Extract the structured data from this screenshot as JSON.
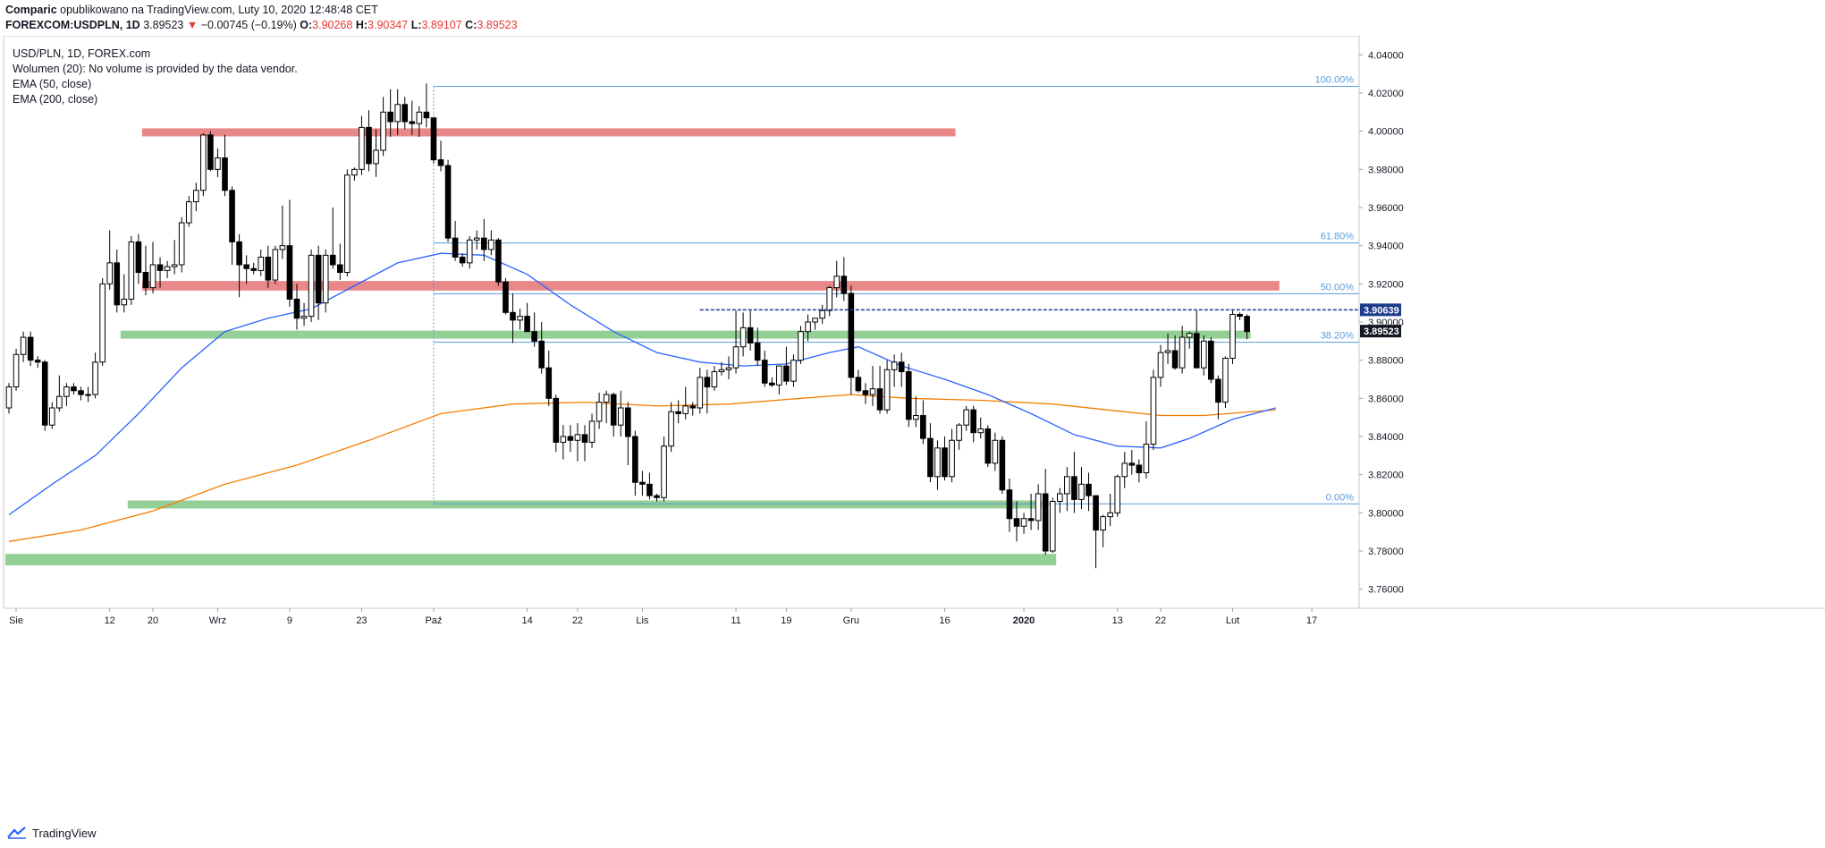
{
  "header": {
    "author": "Comparic",
    "published_text": "opublikowano na TradingView.com, Luty 10, 2020 12:48:48 CET",
    "symbol": "FOREXCOM:USDPLN,",
    "interval": "1D",
    "last": "3.89523",
    "change": "−0.00745 (−0.19%)",
    "o_label": "O:",
    "o_value": "3.90268",
    "h_label": "H:",
    "h_value": "3.90347",
    "l_label": "L:",
    "l_value": "3.89107",
    "c_label": "C:",
    "c_value": "3.89523"
  },
  "legend": {
    "symbol": "USD/PLN, 1D, FOREX.com",
    "volume": "Wolumen (20): No volume is provided by the data vendor.",
    "ema50": "EMA (50, close)",
    "ema200": "EMA (200, close)"
  },
  "footer": {
    "brand": "TradingView"
  },
  "colors": {
    "up_candle": "#ffffff",
    "down_candle": "#000000",
    "wick": "#000000",
    "ema50": "#2962ff",
    "ema200": "#f57c00",
    "resistance": "#e57373",
    "support": "#81c784",
    "fib": "#5b9bd5",
    "current_level": "#1e3a8a"
  },
  "chart_data": {
    "type": "candlestick",
    "title": "USD/PLN, 1D, FOREX.com",
    "ylim": [
      3.75,
      4.05
    ],
    "y_ticks": [
      "3.76000",
      "3.78000",
      "3.80000",
      "3.82000",
      "3.84000",
      "3.86000",
      "3.88000",
      "3.90000",
      "3.92000",
      "3.94000",
      "3.96000",
      "3.98000",
      "4.00000",
      "4.02000",
      "4.04000"
    ],
    "x_tick_labels": [
      "Sie",
      "12",
      "20",
      "Wrz",
      "9",
      "23",
      "Paź",
      "14",
      "22",
      "Lis",
      "11",
      "19",
      "Gru",
      "16",
      "2020",
      "13",
      "22",
      "Lut",
      "17"
    ],
    "x_tick_index": [
      1,
      14,
      20,
      29,
      39,
      49,
      59,
      72,
      79,
      88,
      101,
      108,
      117,
      130,
      141,
      154,
      160,
      170,
      181
    ],
    "candle_count": 177,
    "ohlc": [
      [
        3.855,
        3.868,
        3.852,
        3.866
      ],
      [
        3.866,
        3.886,
        3.864,
        3.883
      ],
      [
        3.883,
        3.895,
        3.879,
        3.892
      ],
      [
        3.892,
        3.895,
        3.877,
        3.88
      ],
      [
        3.88,
        3.882,
        3.876,
        3.879
      ],
      [
        3.879,
        3.88,
        3.843,
        3.846
      ],
      [
        3.846,
        3.858,
        3.844,
        3.855
      ],
      [
        3.855,
        3.872,
        3.853,
        3.861
      ],
      [
        3.861,
        3.868,
        3.856,
        3.866
      ],
      [
        3.866,
        3.868,
        3.862,
        3.864
      ],
      [
        3.864,
        3.866,
        3.859,
        3.862
      ],
      [
        3.862,
        3.866,
        3.858,
        3.862
      ],
      [
        3.862,
        3.884,
        3.86,
        3.879
      ],
      [
        3.879,
        3.923,
        3.877,
        3.92
      ],
      [
        3.92,
        3.948,
        3.917,
        3.931
      ],
      [
        3.931,
        3.938,
        3.905,
        3.909
      ],
      [
        3.909,
        3.925,
        3.905,
        3.912
      ],
      [
        3.912,
        3.945,
        3.909,
        3.942
      ],
      [
        3.942,
        3.946,
        3.92,
        3.926
      ],
      [
        3.926,
        3.94,
        3.914,
        3.918
      ],
      [
        3.918,
        3.942,
        3.915,
        3.93
      ],
      [
        3.93,
        3.934,
        3.918,
        3.927
      ],
      [
        3.927,
        3.932,
        3.923,
        3.929
      ],
      [
        3.929,
        3.943,
        3.925,
        3.93
      ],
      [
        3.93,
        3.955,
        3.926,
        3.952
      ],
      [
        3.952,
        3.966,
        3.95,
        3.963
      ],
      [
        3.963,
        3.973,
        3.958,
        3.969
      ],
      [
        3.969,
        3.999,
        3.966,
        3.998
      ],
      [
        3.998,
        4.0,
        3.979,
        3.98
      ],
      [
        3.98,
        3.991,
        3.976,
        3.986
      ],
      [
        3.986,
        3.998,
        3.966,
        3.969
      ],
      [
        3.969,
        3.971,
        3.93,
        3.942
      ],
      [
        3.942,
        3.946,
        3.913,
        3.93
      ],
      [
        3.93,
        3.935,
        3.92,
        3.928
      ],
      [
        3.928,
        3.931,
        3.925,
        3.927
      ],
      [
        3.927,
        3.938,
        3.924,
        3.934
      ],
      [
        3.934,
        3.94,
        3.918,
        3.922
      ],
      [
        3.922,
        3.94,
        3.92,
        3.938
      ],
      [
        3.938,
        3.961,
        3.933,
        3.94
      ],
      [
        3.94,
        3.964,
        3.908,
        3.912
      ],
      [
        3.912,
        3.92,
        3.896,
        3.902
      ],
      [
        3.902,
        3.91,
        3.898,
        3.903
      ],
      [
        3.903,
        3.938,
        3.9,
        3.935
      ],
      [
        3.935,
        3.94,
        3.901,
        3.91
      ],
      [
        3.91,
        3.938,
        3.905,
        3.935
      ],
      [
        3.935,
        3.96,
        3.928,
        3.93
      ],
      [
        3.93,
        3.941,
        3.922,
        3.926
      ],
      [
        3.926,
        3.98,
        3.924,
        3.977
      ],
      [
        3.977,
        3.981,
        3.974,
        3.98
      ],
      [
        3.98,
        4.008,
        3.977,
        4.002
      ],
      [
        4.002,
        4.011,
        3.979,
        3.983
      ],
      [
        3.983,
        4.001,
        3.976,
        3.99
      ],
      [
        3.99,
        4.018,
        3.987,
        4.01
      ],
      [
        4.01,
        4.022,
        3.997,
        4.005
      ],
      [
        4.005,
        4.022,
        3.998,
        4.014
      ],
      [
        4.014,
        4.018,
        4.001,
        4.005
      ],
      [
        4.005,
        4.016,
        3.998,
        4.004
      ],
      [
        4.004,
        4.013,
        3.997,
        4.01
      ],
      [
        4.01,
        4.025,
        4.002,
        4.007
      ],
      [
        4.007,
        4.006,
        3.983,
        3.985
      ],
      [
        3.985,
        3.995,
        3.979,
        3.982
      ],
      [
        3.982,
        3.985,
        3.942,
        3.944
      ],
      [
        3.944,
        3.953,
        3.932,
        3.934
      ],
      [
        3.934,
        3.936,
        3.929,
        3.931
      ],
      [
        3.931,
        3.945,
        3.928,
        3.943
      ],
      [
        3.943,
        3.948,
        3.938,
        3.944
      ],
      [
        3.944,
        3.954,
        3.932,
        3.938
      ],
      [
        3.938,
        3.948,
        3.935,
        3.943
      ],
      [
        3.943,
        3.944,
        3.919,
        3.921
      ],
      [
        3.921,
        3.923,
        3.904,
        3.905
      ],
      [
        3.905,
        3.915,
        3.889,
        3.901
      ],
      [
        3.901,
        3.907,
        3.896,
        3.903
      ],
      [
        3.903,
        3.91,
        3.895,
        3.895
      ],
      [
        3.895,
        3.905,
        3.887,
        3.89
      ],
      [
        3.89,
        3.9,
        3.873,
        3.876
      ],
      [
        3.876,
        3.885,
        3.856,
        3.86
      ],
      [
        3.86,
        3.862,
        3.832,
        3.837
      ],
      [
        3.837,
        3.846,
        3.828,
        3.84
      ],
      [
        3.84,
        3.846,
        3.832,
        3.838
      ],
      [
        3.838,
        3.847,
        3.827,
        3.841
      ],
      [
        3.841,
        3.846,
        3.827,
        3.837
      ],
      [
        3.837,
        3.852,
        3.834,
        3.848
      ],
      [
        3.848,
        3.863,
        3.844,
        3.858
      ],
      [
        3.858,
        3.864,
        3.847,
        3.862
      ],
      [
        3.862,
        3.863,
        3.84,
        3.846
      ],
      [
        3.846,
        3.864,
        3.84,
        3.855
      ],
      [
        3.855,
        3.858,
        3.825,
        3.84
      ],
      [
        3.84,
        3.843,
        3.809,
        3.816
      ],
      [
        3.816,
        3.822,
        3.809,
        3.815
      ],
      [
        3.815,
        3.821,
        3.807,
        3.809
      ],
      [
        3.809,
        3.81,
        3.806,
        3.808
      ],
      [
        3.808,
        3.84,
        3.806,
        3.835
      ],
      [
        3.835,
        3.858,
        3.832,
        3.853
      ],
      [
        3.853,
        3.859,
        3.847,
        3.852
      ],
      [
        3.852,
        3.866,
        3.849,
        3.856
      ],
      [
        3.856,
        3.858,
        3.851,
        3.855
      ],
      [
        3.855,
        3.876,
        3.852,
        3.871
      ],
      [
        3.871,
        3.875,
        3.852,
        3.866
      ],
      [
        3.866,
        3.877,
        3.864,
        3.874
      ],
      [
        3.874,
        3.879,
        3.872,
        3.875
      ],
      [
        3.875,
        3.882,
        3.87,
        3.876
      ],
      [
        3.876,
        3.906,
        3.873,
        3.887
      ],
      [
        3.887,
        3.905,
        3.882,
        3.897
      ],
      [
        3.897,
        3.906,
        3.885,
        3.889
      ],
      [
        3.889,
        3.897,
        3.877,
        3.88
      ],
      [
        3.88,
        3.885,
        3.866,
        3.868
      ],
      [
        3.868,
        3.871,
        3.866,
        3.867
      ],
      [
        3.867,
        3.877,
        3.862,
        3.877
      ],
      [
        3.877,
        3.887,
        3.867,
        3.869
      ],
      [
        3.869,
        3.883,
        3.866,
        3.88
      ],
      [
        3.88,
        3.898,
        3.878,
        3.895
      ],
      [
        3.895,
        3.904,
        3.89,
        3.9
      ],
      [
        3.9,
        3.902,
        3.896,
        3.902
      ],
      [
        3.902,
        3.909,
        3.899,
        3.906
      ],
      [
        3.906,
        3.919,
        3.903,
        3.918
      ],
      [
        3.918,
        3.932,
        3.913,
        3.924
      ],
      [
        3.924,
        3.934,
        3.911,
        3.915
      ],
      [
        3.915,
        3.919,
        3.862,
        3.871
      ],
      [
        3.871,
        3.875,
        3.863,
        3.864
      ],
      [
        3.864,
        3.868,
        3.857,
        3.862
      ],
      [
        3.862,
        3.877,
        3.856,
        3.865
      ],
      [
        3.865,
        3.877,
        3.852,
        3.854
      ],
      [
        3.854,
        3.88,
        3.852,
        3.875
      ],
      [
        3.875,
        3.883,
        3.866,
        3.879
      ],
      [
        3.879,
        3.884,
        3.866,
        3.874
      ],
      [
        3.874,
        3.878,
        3.845,
        3.849
      ],
      [
        3.849,
        3.861,
        3.845,
        3.851
      ],
      [
        3.851,
        3.859,
        3.836,
        3.839
      ],
      [
        3.839,
        3.847,
        3.816,
        3.819
      ],
      [
        3.819,
        3.838,
        3.812,
        3.834
      ],
      [
        3.834,
        3.84,
        3.817,
        3.819
      ],
      [
        3.819,
        3.844,
        3.816,
        3.838
      ],
      [
        3.838,
        3.847,
        3.833,
        3.846
      ],
      [
        3.846,
        3.856,
        3.843,
        3.854
      ],
      [
        3.854,
        3.856,
        3.837,
        3.842
      ],
      [
        3.842,
        3.85,
        3.839,
        3.844
      ],
      [
        3.844,
        3.846,
        3.824,
        3.826
      ],
      [
        3.826,
        3.842,
        3.822,
        3.838
      ],
      [
        3.838,
        3.84,
        3.81,
        3.812
      ],
      [
        3.812,
        3.818,
        3.79,
        3.797
      ],
      [
        3.797,
        3.806,
        3.785,
        3.793
      ],
      [
        3.793,
        3.8,
        3.789,
        3.797
      ],
      [
        3.797,
        3.81,
        3.791,
        3.796
      ],
      [
        3.796,
        3.815,
        3.791,
        3.81
      ],
      [
        3.81,
        3.823,
        3.778,
        3.78
      ],
      [
        3.78,
        3.808,
        3.779,
        3.806
      ],
      [
        3.806,
        3.813,
        3.8,
        3.81
      ],
      [
        3.81,
        3.824,
        3.801,
        3.819
      ],
      [
        3.819,
        3.832,
        3.8,
        3.807
      ],
      [
        3.807,
        3.824,
        3.802,
        3.815
      ],
      [
        3.815,
        3.821,
        3.801,
        3.809
      ],
      [
        3.809,
        3.809,
        3.771,
        3.791
      ],
      [
        3.791,
        3.799,
        3.782,
        3.798
      ],
      [
        3.798,
        3.81,
        3.793,
        3.8
      ],
      [
        3.8,
        3.82,
        3.798,
        3.819
      ],
      [
        3.819,
        3.832,
        3.813,
        3.826
      ],
      [
        3.826,
        3.833,
        3.82,
        3.825
      ],
      [
        3.825,
        3.828,
        3.816,
        3.821
      ],
      [
        3.821,
        3.848,
        3.818,
        3.836
      ],
      [
        3.836,
        3.875,
        3.833,
        3.871
      ],
      [
        3.871,
        3.888,
        3.866,
        3.884
      ],
      [
        3.884,
        3.894,
        3.878,
        3.885
      ],
      [
        3.885,
        3.893,
        3.875,
        3.876
      ],
      [
        3.876,
        3.898,
        3.873,
        3.892
      ],
      [
        3.892,
        3.895,
        3.886,
        3.894
      ],
      [
        3.894,
        3.906,
        3.876,
        3.876
      ],
      [
        3.876,
        3.893,
        3.872,
        3.89
      ],
      [
        3.89,
        3.892,
        3.868,
        3.87
      ],
      [
        3.87,
        3.872,
        3.849,
        3.858
      ],
      [
        3.858,
        3.882,
        3.855,
        3.881
      ],
      [
        3.881,
        3.906,
        3.878,
        3.904
      ],
      [
        3.904,
        3.905,
        3.901,
        3.903
      ],
      [
        3.903,
        3.904,
        3.891,
        3.895
      ]
    ],
    "ema50_points": [
      [
        0,
        3.799
      ],
      [
        6,
        3.815
      ],
      [
        12,
        3.83
      ],
      [
        18,
        3.852
      ],
      [
        24,
        3.876
      ],
      [
        30,
        3.895
      ],
      [
        36,
        3.902
      ],
      [
        42,
        3.907
      ],
      [
        48,
        3.919
      ],
      [
        54,
        3.931
      ],
      [
        60,
        3.936
      ],
      [
        66,
        3.935
      ],
      [
        72,
        3.925
      ],
      [
        78,
        3.909
      ],
      [
        84,
        3.895
      ],
      [
        90,
        3.884
      ],
      [
        96,
        3.879
      ],
      [
        102,
        3.877
      ],
      [
        108,
        3.878
      ],
      [
        114,
        3.884
      ],
      [
        118,
        3.887
      ],
      [
        124,
        3.877
      ],
      [
        130,
        3.87
      ],
      [
        136,
        3.862
      ],
      [
        142,
        3.852
      ],
      [
        148,
        3.841
      ],
      [
        154,
        3.835
      ],
      [
        160,
        3.834
      ],
      [
        164,
        3.839
      ],
      [
        170,
        3.849
      ],
      [
        176,
        3.855
      ]
    ],
    "ema200_points": [
      [
        0,
        3.785
      ],
      [
        10,
        3.791
      ],
      [
        20,
        3.801
      ],
      [
        30,
        3.815
      ],
      [
        40,
        3.825
      ],
      [
        50,
        3.838
      ],
      [
        60,
        3.852
      ],
      [
        70,
        3.857
      ],
      [
        80,
        3.858
      ],
      [
        90,
        3.856
      ],
      [
        100,
        3.857
      ],
      [
        110,
        3.86
      ],
      [
        117,
        3.862
      ],
      [
        125,
        3.86
      ],
      [
        135,
        3.859
      ],
      [
        145,
        3.857
      ],
      [
        155,
        3.853
      ],
      [
        160,
        3.851
      ],
      [
        166,
        3.851
      ],
      [
        176,
        3.854
      ]
    ],
    "zones": [
      {
        "kind": "resistance",
        "from": 19,
        "to": 131,
        "low": 3.9985,
        "high": 4.0015
      },
      {
        "kind": "resistance",
        "from": 19,
        "to": 176,
        "low": 3.9165,
        "high": 3.9215
      },
      {
        "kind": "support",
        "from": 16,
        "to": 172,
        "low": 3.8915,
        "high": 3.8955
      },
      {
        "kind": "support",
        "from": 17,
        "to": 143,
        "low": 3.8025,
        "high": 3.8065
      },
      {
        "kind": "support",
        "from": 0,
        "to": 145,
        "low": 3.7725,
        "high": 3.7785
      }
    ],
    "fib_start": 59,
    "fib_levels": [
      {
        "label": "100.00%",
        "price": 4.0235
      },
      {
        "label": "61.80%",
        "price": 3.9414
      },
      {
        "label": "50.00%",
        "price": 3.9148
      },
      {
        "label": "38.20%",
        "price": 3.8894
      },
      {
        "label": "0.00%",
        "price": 3.8047
      }
    ],
    "current_line": {
      "label": "3.90639",
      "price": 3.90639,
      "from": 96
    },
    "last_price_label": "3.89523",
    "last_price_level": 3.89523
  }
}
